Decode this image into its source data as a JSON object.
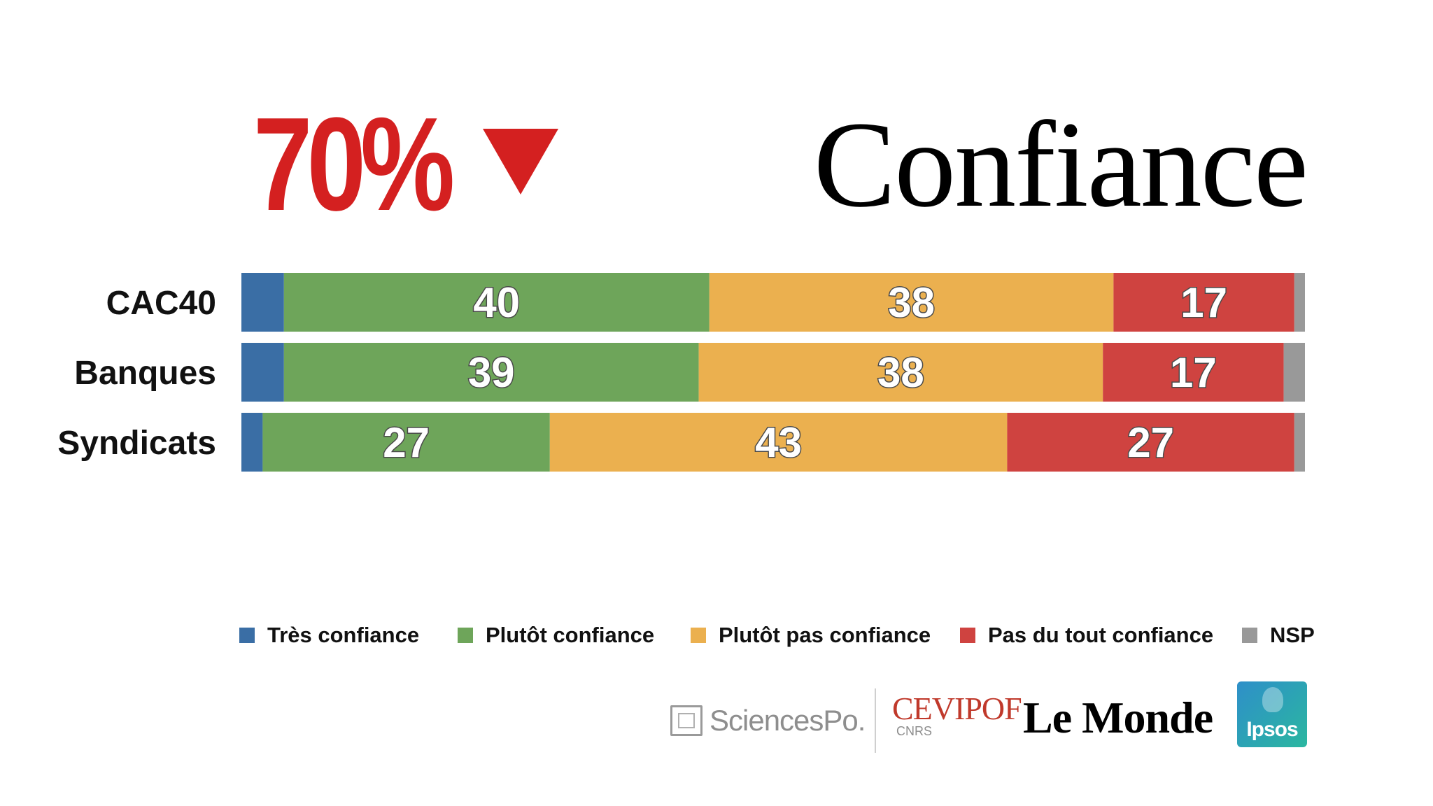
{
  "headline": {
    "value": "70%",
    "arrow_icon": "triangle-down-icon",
    "color": "#d42020"
  },
  "chart_data": {
    "type": "bar",
    "orientation": "horizontal",
    "stacked": true,
    "title": "Confiance",
    "categories": [
      "CAC40",
      "Banques",
      "Syndicats"
    ],
    "series": [
      {
        "name": "Très confiance",
        "color": "#3a6ea5",
        "values": [
          4,
          4,
          2
        ]
      },
      {
        "name": "Plutôt confiance",
        "color": "#6ea55a",
        "values": [
          40,
          39,
          27
        ]
      },
      {
        "name": "Plutôt pas confiance",
        "color": "#ebb04f",
        "values": [
          38,
          38,
          43
        ]
      },
      {
        "name": "Pas du tout confiance",
        "color": "#cf4340",
        "values": [
          17,
          17,
          27
        ]
      },
      {
        "name": "NSP",
        "color": "#999999",
        "values": [
          1,
          2,
          1
        ]
      }
    ],
    "labeled_series": [
      "Plutôt confiance",
      "Plutôt pas confiance",
      "Pas du tout confiance"
    ],
    "xlim": [
      0,
      100
    ],
    "grid": false,
    "legend_position": "bottom"
  },
  "logos": {
    "sciencespo": "SciencesPo.",
    "cevipof": "CEVIPOF",
    "cnrs": "CNRS",
    "lemonde": "Le Monde",
    "ipsos": "Ipsos"
  }
}
